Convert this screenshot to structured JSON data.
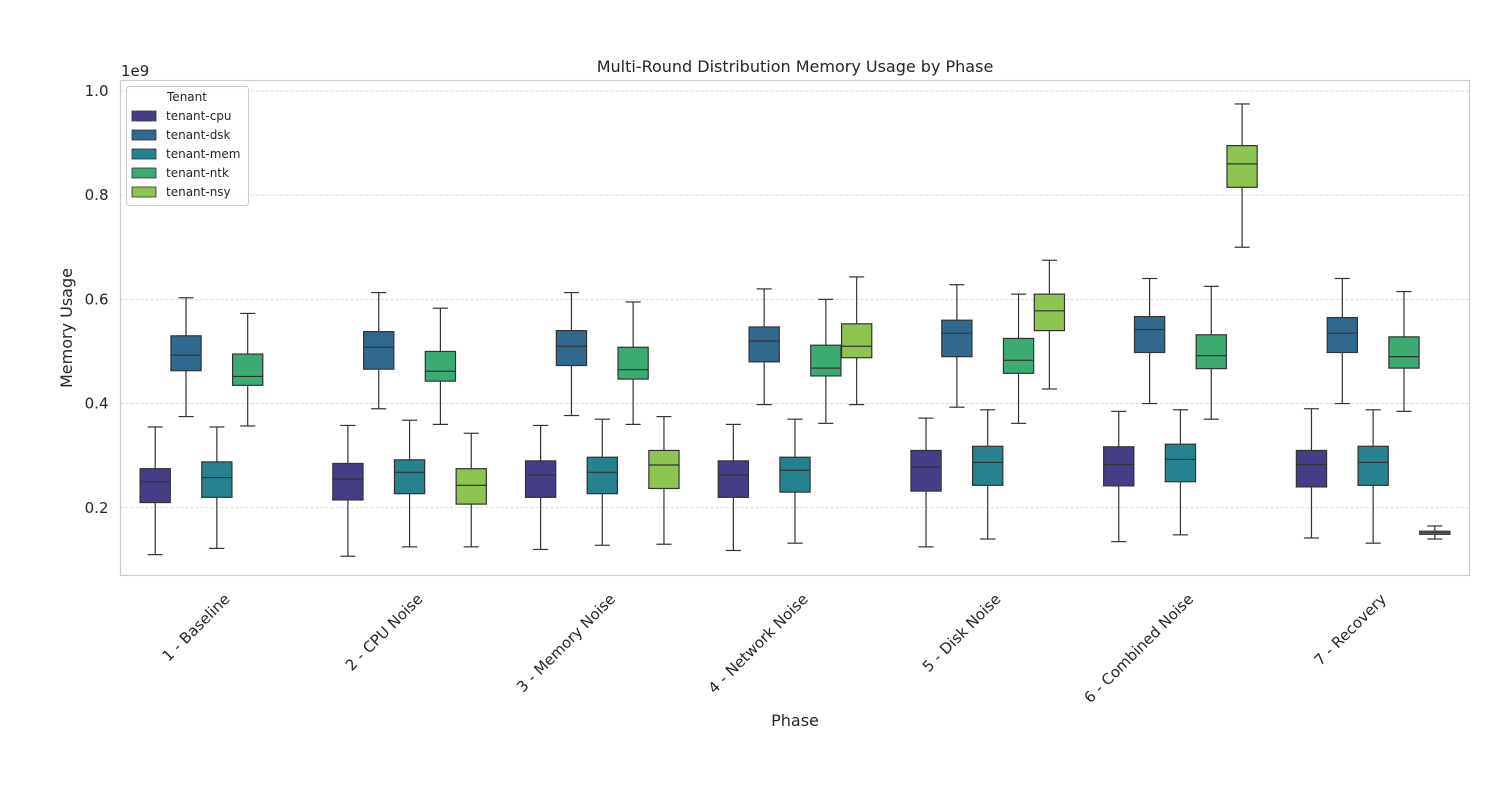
{
  "chart_data": {
    "type": "box",
    "title": "Multi-Round Distribution Memory Usage by Phase",
    "xlabel": "Phase",
    "ylabel": "Memory Usage",
    "y_exponent_label": "1e9",
    "ylim": [
      0.07,
      1.02
    ],
    "y_ticks": [
      0.2,
      0.4,
      0.6,
      0.8,
      1.0
    ],
    "y_tick_labels": [
      "0.2",
      "0.4",
      "0.6",
      "0.8",
      "1.0"
    ],
    "grid": true,
    "legend_title": "Tenant",
    "legend_position": "top-left",
    "categories": [
      "1 - Baseline",
      "2 - CPU Noise",
      "3 - Memory Noise",
      "4 - Network Noise",
      "5 - Disk Noise",
      "6 - Combined Noise",
      "7 - Recovery"
    ],
    "series": [
      {
        "name": "tenant-cpu",
        "color": "#433e85",
        "boxes": [
          {
            "min": 0.11,
            "q1": 0.21,
            "median": 0.25,
            "q3": 0.275,
            "max": 0.355
          },
          {
            "min": 0.107,
            "q1": 0.215,
            "median": 0.255,
            "q3": 0.285,
            "max": 0.358
          },
          {
            "min": 0.12,
            "q1": 0.22,
            "median": 0.263,
            "q3": 0.29,
            "max": 0.358
          },
          {
            "min": 0.118,
            "q1": 0.22,
            "median": 0.263,
            "q3": 0.29,
            "max": 0.36
          },
          {
            "min": 0.125,
            "q1": 0.232,
            "median": 0.278,
            "q3": 0.31,
            "max": 0.372
          },
          {
            "min": 0.135,
            "q1": 0.242,
            "median": 0.283,
            "q3": 0.317,
            "max": 0.385
          },
          {
            "min": 0.142,
            "q1": 0.24,
            "median": 0.283,
            "q3": 0.31,
            "max": 0.39
          }
        ]
      },
      {
        "name": "tenant-dsk",
        "color": "#31688e",
        "boxes": [
          {
            "min": 0.375,
            "q1": 0.463,
            "median": 0.493,
            "q3": 0.53,
            "max": 0.603
          },
          {
            "min": 0.39,
            "q1": 0.466,
            "median": 0.508,
            "q3": 0.538,
            "max": 0.613
          },
          {
            "min": 0.377,
            "q1": 0.473,
            "median": 0.51,
            "q3": 0.54,
            "max": 0.613
          },
          {
            "min": 0.398,
            "q1": 0.48,
            "median": 0.52,
            "q3": 0.547,
            "max": 0.62
          },
          {
            "min": 0.393,
            "q1": 0.49,
            "median": 0.535,
            "q3": 0.56,
            "max": 0.628
          },
          {
            "min": 0.4,
            "q1": 0.498,
            "median": 0.542,
            "q3": 0.567,
            "max": 0.64
          },
          {
            "min": 0.4,
            "q1": 0.498,
            "median": 0.535,
            "q3": 0.565,
            "max": 0.64
          }
        ]
      },
      {
        "name": "tenant-mem",
        "color": "#26828e",
        "boxes": [
          {
            "min": 0.122,
            "q1": 0.22,
            "median": 0.258,
            "q3": 0.288,
            "max": 0.355
          },
          {
            "min": 0.125,
            "q1": 0.227,
            "median": 0.268,
            "q3": 0.292,
            "max": 0.368
          },
          {
            "min": 0.128,
            "q1": 0.227,
            "median": 0.268,
            "q3": 0.297,
            "max": 0.37
          },
          {
            "min": 0.132,
            "q1": 0.23,
            "median": 0.272,
            "q3": 0.297,
            "max": 0.37
          },
          {
            "min": 0.14,
            "q1": 0.243,
            "median": 0.287,
            "q3": 0.318,
            "max": 0.388
          },
          {
            "min": 0.148,
            "q1": 0.25,
            "median": 0.293,
            "q3": 0.322,
            "max": 0.388
          },
          {
            "min": 0.132,
            "q1": 0.243,
            "median": 0.287,
            "q3": 0.318,
            "max": 0.388
          }
        ]
      },
      {
        "name": "tenant-ntk",
        "color": "#3bab72",
        "boxes": [
          {
            "min": 0.357,
            "q1": 0.435,
            "median": 0.452,
            "q3": 0.495,
            "max": 0.573
          },
          {
            "min": 0.36,
            "q1": 0.443,
            "median": 0.462,
            "q3": 0.5,
            "max": 0.583
          },
          {
            "min": 0.36,
            "q1": 0.447,
            "median": 0.465,
            "q3": 0.508,
            "max": 0.595
          },
          {
            "min": 0.362,
            "q1": 0.453,
            "median": 0.468,
            "q3": 0.512,
            "max": 0.6
          },
          {
            "min": 0.362,
            "q1": 0.458,
            "median": 0.483,
            "q3": 0.525,
            "max": 0.61
          },
          {
            "min": 0.37,
            "q1": 0.467,
            "median": 0.492,
            "q3": 0.532,
            "max": 0.625
          },
          {
            "min": 0.385,
            "q1": 0.468,
            "median": 0.49,
            "q3": 0.528,
            "max": 0.615
          }
        ]
      },
      {
        "name": "tenant-nsy",
        "color": "#8dc452",
        "boxes": [
          null,
          {
            "min": 0.125,
            "q1": 0.207,
            "median": 0.243,
            "q3": 0.275,
            "max": 0.343
          },
          {
            "min": 0.13,
            "q1": 0.237,
            "median": 0.282,
            "q3": 0.31,
            "max": 0.375
          },
          {
            "min": 0.398,
            "q1": 0.488,
            "median": 0.51,
            "q3": 0.553,
            "max": 0.643
          },
          {
            "min": 0.428,
            "q1": 0.54,
            "median": 0.578,
            "q3": 0.61,
            "max": 0.675
          },
          {
            "min": 0.7,
            "q1": 0.815,
            "median": 0.86,
            "q3": 0.895,
            "max": 0.975
          },
          {
            "min": 0.14,
            "q1": 0.149,
            "median": 0.152,
            "q3": 0.155,
            "max": 0.165
          }
        ]
      }
    ]
  }
}
